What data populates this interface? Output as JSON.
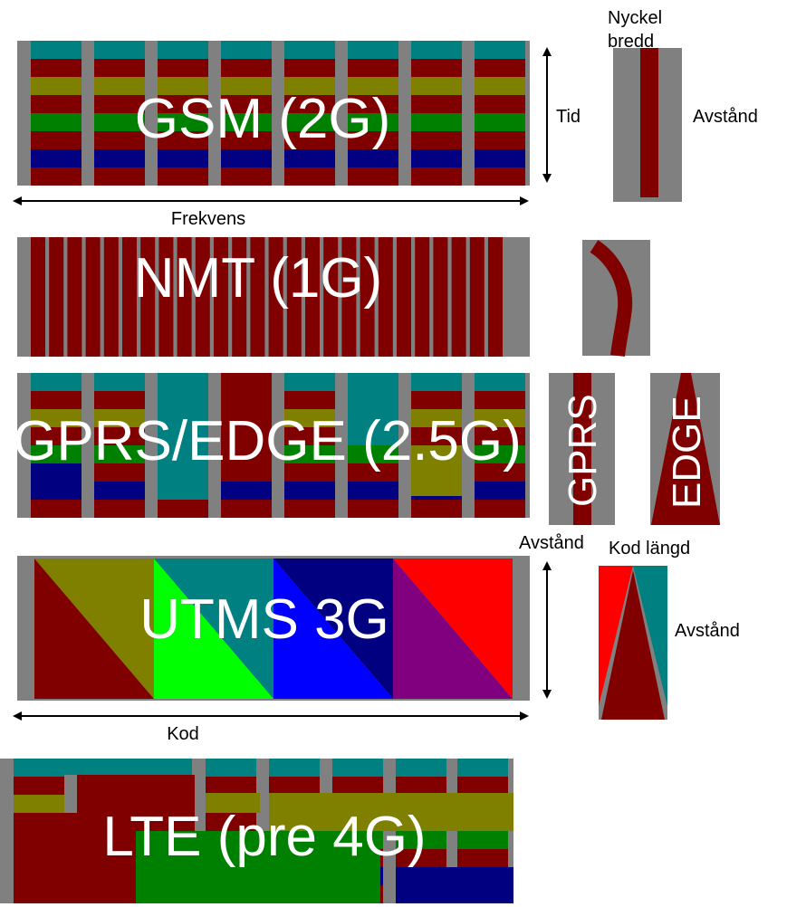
{
  "gsm": {
    "title": "GSM (2G)",
    "axis_time": "Tid",
    "axis_frequency": "Frekvens",
    "key_width_label": "Nyckel\nbredd",
    "key_width_line1": "Nyckel",
    "key_width_line2": "bredd",
    "distance_label": "Avstånd"
  },
  "nmt": {
    "title": "NMT (1G)"
  },
  "gprs_edge": {
    "title": "GPRS/EDGE (2.5G)",
    "gprs_label": "GPRS",
    "edge_label": "EDGE",
    "distance_label": "Avstånd"
  },
  "umts": {
    "title": "UTMS 3G",
    "axis_code": "Kod",
    "code_length_label": "Kod längd",
    "distance_label": "Avstånd"
  },
  "lte": {
    "title": "LTE (pre 4G)"
  },
  "colors": {
    "gray": "#808080",
    "maroon": "#800000",
    "teal": "#008080",
    "olive": "#808000",
    "green": "#008000",
    "navy": "#000080",
    "lime": "#00ff00",
    "blue": "#0000ff",
    "purple": "#800080",
    "red": "#ff0000"
  }
}
